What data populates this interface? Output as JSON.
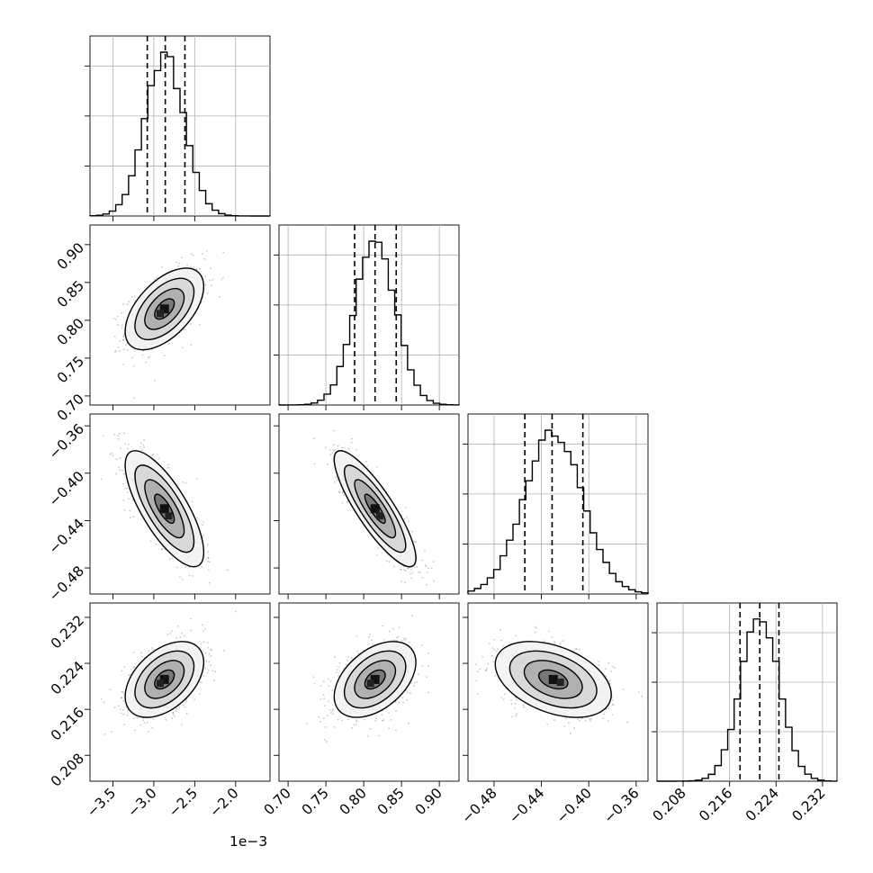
{
  "chart_data": {
    "type": "corner",
    "title": "",
    "offset_text": "1e−3",
    "params": [
      {
        "range": [
          -3.78,
          -1.58
        ],
        "ticks": [
          -3.5,
          -3.0,
          -2.5,
          -2.0
        ],
        "tick_labels": [
          "−3.5",
          "−3.0",
          "−2.5",
          "−2.0"
        ],
        "quantiles": [
          -3.08,
          -2.86,
          -2.62
        ],
        "mean": -2.87,
        "sd": 0.24,
        "hist_ticks": [
          1,
          2,
          3
        ]
      },
      {
        "range": [
          0.688,
          0.926
        ],
        "ticks": [
          0.7,
          0.75,
          0.8,
          0.85,
          0.9
        ],
        "tick_labels": [
          "0.70",
          "0.75",
          "0.80",
          "0.85",
          "0.90"
        ],
        "quantiles": [
          0.788,
          0.815,
          0.843
        ],
        "mean": 0.815,
        "sd": 0.027,
        "hist_ticks": [
          1,
          2,
          3
        ]
      },
      {
        "range": [
          -0.502,
          -0.35
        ],
        "ticks": [
          -0.48,
          -0.44,
          -0.4,
          -0.36
        ],
        "tick_labels": [
          "−0.48",
          "−0.44",
          "−0.40",
          "−0.36"
        ],
        "quantiles": [
          -0.454,
          -0.431,
          -0.405
        ],
        "mean": -0.43,
        "sd": 0.0245,
        "hist_ticks": [
          1,
          2,
          3
        ]
      },
      {
        "range": [
          0.2035,
          0.2345
        ],
        "ticks": [
          0.208,
          0.216,
          0.224,
          0.232
        ],
        "tick_labels": [
          "0.208",
          "0.216",
          "0.224",
          "0.232"
        ],
        "quantiles": [
          0.2178,
          0.2212,
          0.2245
        ],
        "mean": 0.2212,
        "sd": 0.0033,
        "hist_ticks": [
          1,
          2,
          3
        ]
      }
    ],
    "correlations": [
      [
        1.0,
        0.55,
        -0.75,
        0.45
      ],
      [
        0.55,
        1.0,
        -0.85,
        0.45
      ],
      [
        -0.75,
        -0.85,
        1.0,
        -0.4
      ],
      [
        0.45,
        0.45,
        -0.4,
        1.0
      ]
    ],
    "contour_levels_sigma": [
      0.5,
      1.0,
      1.5,
      2.0
    ],
    "grid": true,
    "legend": "none"
  }
}
